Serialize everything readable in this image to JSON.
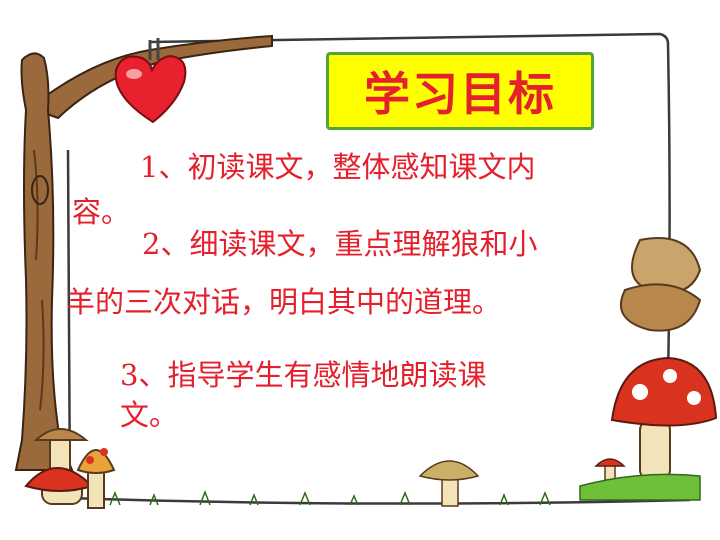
{
  "title": "学习目标",
  "objectives": {
    "item1_line1": "1、初读课文，整体感知课文内",
    "item1_line2": "容。",
    "item2_line1": "2、细读课文，重点理解狼和小",
    "item2_line2": "羊的三次对话，明白其中的道理。",
    "item3_line1": "3、指导学生有感情地朗读课",
    "item3_line2": "文。"
  },
  "colors": {
    "text": "#e4202c",
    "title_bg": "#ffff00",
    "title_border": "#4fa43a",
    "frame": "#3a3a3a",
    "tree": "#9b6a3c",
    "heart": "#e8212e",
    "mushroom_cap": "#d9331f",
    "mushroom_stem": "#f3e3b8",
    "grass": "#6fbf3a"
  }
}
